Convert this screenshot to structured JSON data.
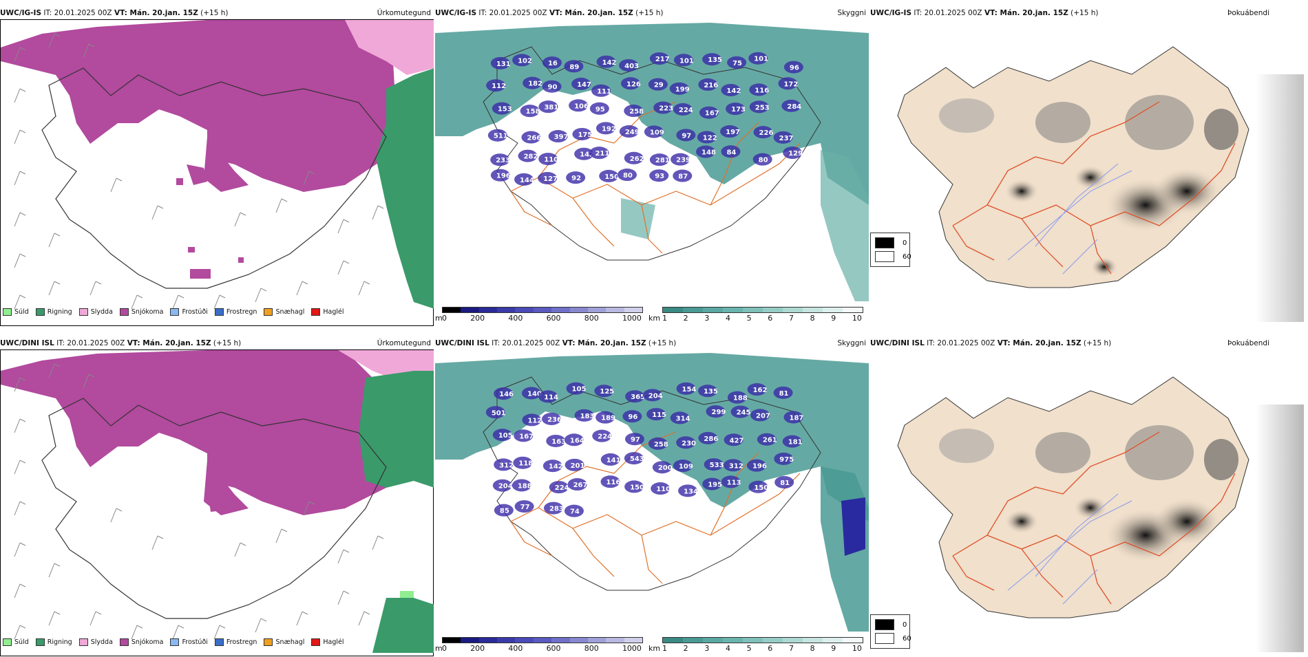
{
  "rows": [
    {
      "model": "UWC/IG-IS",
      "it_label": "IT: 20.01.2025 00Z",
      "vt_label": "VT: Mán. 20.jan. 15Z",
      "lead": "(+15 h)",
      "precip_title": "Úrkomutegund",
      "cloud_title": "Skyggni",
      "fog_title": "Þokuábendi",
      "cloud_numbers": [
        "131",
        "102",
        "16",
        "89",
        "142",
        "403",
        "217",
        "101",
        "135",
        "75",
        "101",
        "96",
        "112",
        "182",
        "90",
        "147",
        "111",
        "126",
        "29",
        "199",
        "216",
        "142",
        "116",
        "172",
        "153",
        "158",
        "381",
        "106",
        "95",
        "258",
        "223",
        "224",
        "167",
        "173",
        "253",
        "284",
        "511",
        "266",
        "397",
        "175",
        "192",
        "249",
        "109",
        "97",
        "122",
        "197",
        "226",
        "237",
        "233",
        "282",
        "110",
        "142",
        "211",
        "262",
        "281",
        "239",
        "148",
        "84",
        "80",
        "129",
        "196",
        "144",
        "127",
        "92",
        "150",
        "80",
        "93",
        "87"
      ]
    },
    {
      "model": "UWC/DINI ISL",
      "it_label": "IT: 20.01.2025 00Z",
      "vt_label": "VT: Mán. 20.jan. 15Z",
      "lead": "(+15 h)",
      "precip_title": "Úrkomutegund",
      "cloud_title": "Skyggni",
      "fog_title": "Þokuábendi",
      "cloud_numbers": [
        "146",
        "140",
        "114",
        "105",
        "125",
        "365",
        "204",
        "154",
        "135",
        "188",
        "162",
        "81",
        "501",
        "112",
        "236",
        "183",
        "189",
        "96",
        "115",
        "314",
        "299",
        "245",
        "207",
        "187",
        "105",
        "167",
        "163",
        "164",
        "224",
        "97",
        "258",
        "230",
        "286",
        "427",
        "261",
        "181",
        "312",
        "118",
        "142",
        "201",
        "141",
        "543",
        "200",
        "109",
        "533",
        "312",
        "196",
        "975",
        "204",
        "188",
        "224",
        "267",
        "116",
        "150",
        "110",
        "134",
        "195",
        "113",
        "150",
        "81",
        "85",
        "77",
        "283",
        "74"
      ]
    }
  ],
  "precip_legend": [
    {
      "label": "Súld",
      "color": "#90ee90"
    },
    {
      "label": "Rigning",
      "color": "#3a9a6a"
    },
    {
      "label": "Slydda",
      "color": "#f0a8d8"
    },
    {
      "label": "Snjókoma",
      "color": "#b24a9e"
    },
    {
      "label": "Frostúði",
      "color": "#8ab8f0"
    },
    {
      "label": "Frostregn",
      "color": "#3a6ec8"
    },
    {
      "label": "Snæhagl",
      "color": "#f0a020"
    },
    {
      "label": "Haglél",
      "color": "#e01818"
    }
  ],
  "cloud_base_bar": {
    "unit": "m",
    "ticks": [
      "0",
      "200",
      "400",
      "600",
      "800",
      "1000"
    ]
  },
  "visibility_bar": {
    "unit": "km",
    "ticks": [
      "1",
      "2",
      "3",
      "4",
      "5",
      "6",
      "7",
      "8",
      "9",
      "10"
    ]
  },
  "fog_legend": [
    {
      "value": "0",
      "color": "#000000"
    },
    {
      "value": "60",
      "color": "#ffffff"
    }
  ],
  "colors": {
    "snow": "#b24a9e",
    "rain": "#3a9a6a",
    "sleet": "#f0a8d8",
    "teal_vis": "#4a9a94",
    "cloud_purple": "#3a2aa8",
    "road": "#e07028",
    "land": "#f0e0cc"
  }
}
